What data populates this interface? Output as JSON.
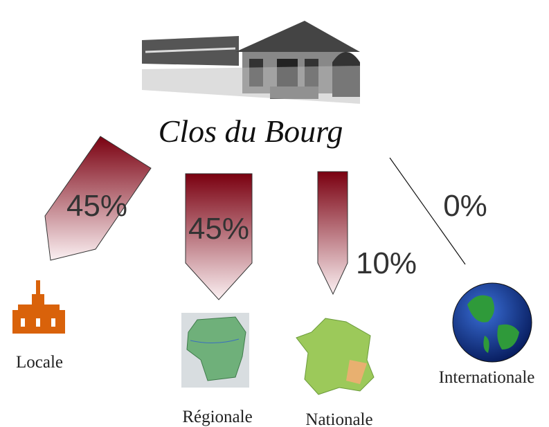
{
  "logo": {
    "title": "Clos du Bourg"
  },
  "nodes": [
    {
      "label": "Locale",
      "share": "45%"
    },
    {
      "label": "Régionale",
      "share": "45%"
    },
    {
      "label": "Nationale",
      "share": "10%"
    },
    {
      "label": "Internationale",
      "share": "0%"
    }
  ]
}
